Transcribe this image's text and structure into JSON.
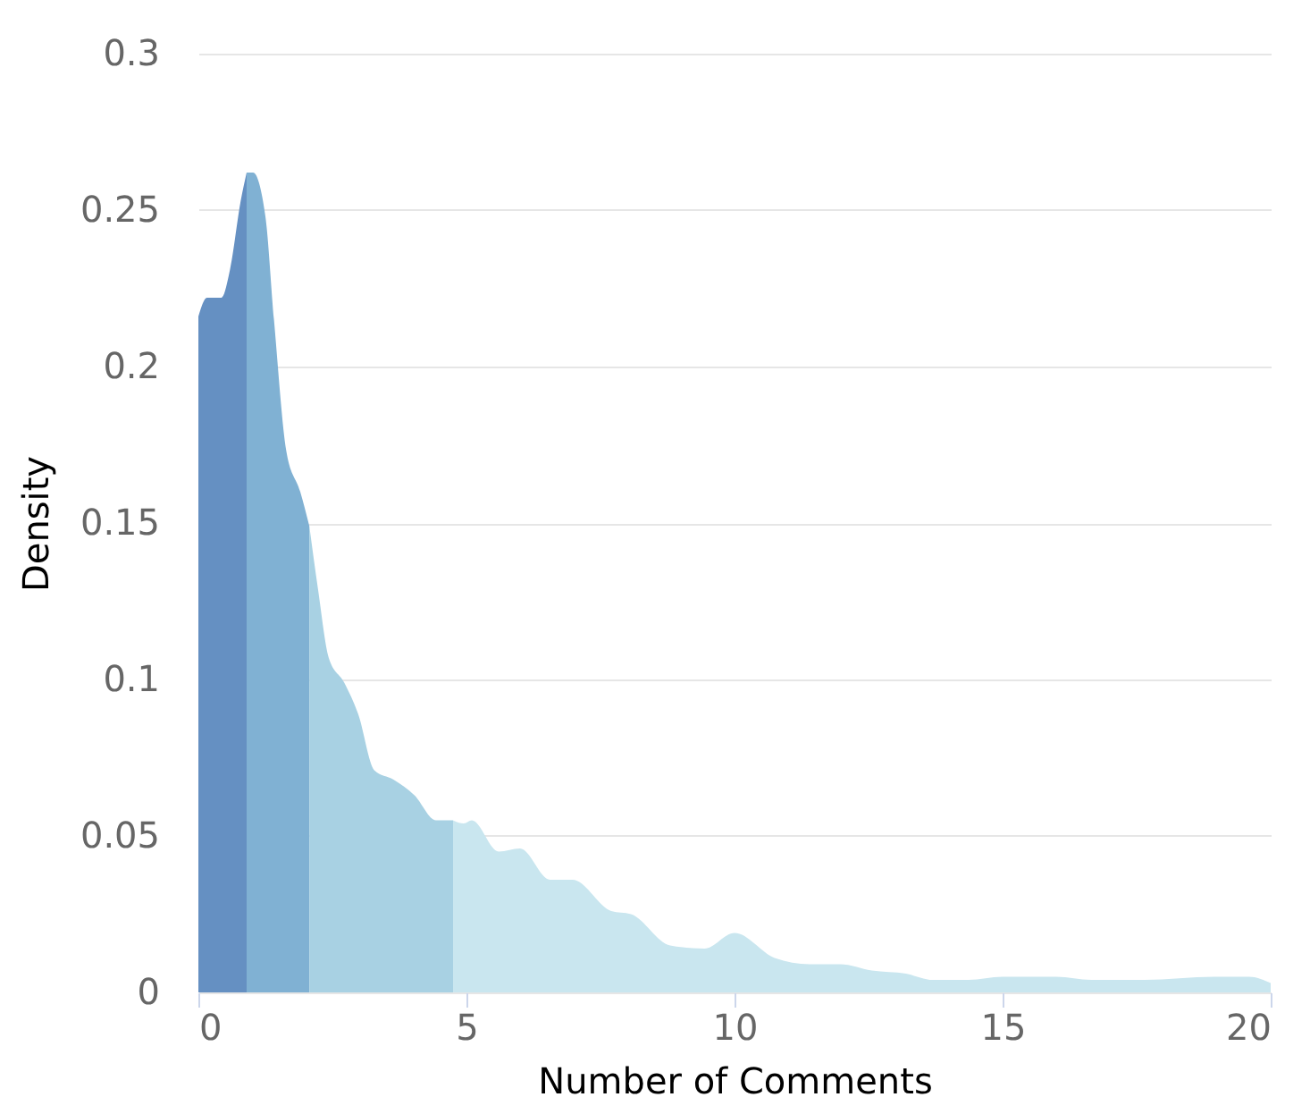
{
  "chart_data": {
    "type": "area",
    "xlabel": "Number of Comments",
    "ylabel": "Density",
    "xlim": [
      0,
      20
    ],
    "xticks": [
      0,
      5,
      10,
      15,
      20
    ],
    "ylim": [
      0,
      0.3
    ],
    "yticks": [
      0,
      0.05,
      0.1,
      0.15,
      0.2,
      0.25,
      0.3
    ],
    "grid": "y",
    "series": [
      {
        "color": "#6590c2",
        "x": [
          0,
          0.16,
          0.43,
          0.59,
          0.79,
          0.9
        ],
        "values": [
          0.216,
          0.222,
          0.222,
          0.231,
          0.253,
          0.262
        ]
      },
      {
        "color": "#80b1d3",
        "x": [
          0.9,
          1.02,
          1.25,
          1.41,
          1.64,
          1.9,
          2.07
        ],
        "values": [
          0.262,
          0.262,
          0.248,
          0.215,
          0.173,
          0.16,
          0.149
        ]
      },
      {
        "color": "#a8d1e3",
        "x": [
          2.07,
          2.23,
          2.43,
          2.72,
          2.98,
          3.28,
          3.64,
          4.03,
          4.43,
          4.75
        ],
        "values": [
          0.149,
          0.129,
          0.107,
          0.099,
          0.089,
          0.071,
          0.068,
          0.063,
          0.055,
          0.055
        ]
      },
      {
        "color": "#c9e6ef",
        "x": [
          4.75,
          4.95,
          5.1,
          5.6,
          6.0,
          6.56,
          6.98,
          7.7,
          8.07,
          8.8,
          9.44,
          10.0,
          10.75,
          11.4,
          11.97,
          12.56,
          13.2,
          13.7,
          14.36,
          15.0,
          16.0,
          16.66,
          17.64,
          18.95,
          19.6,
          20
        ],
        "values": [
          0.055,
          0.054,
          0.055,
          0.045,
          0.046,
          0.036,
          0.036,
          0.026,
          0.025,
          0.015,
          0.014,
          0.019,
          0.011,
          0.009,
          0.009,
          0.007,
          0.006,
          0.004,
          0.004,
          0.005,
          0.005,
          0.004,
          0.004,
          0.005,
          0.005,
          0.003
        ]
      }
    ]
  }
}
